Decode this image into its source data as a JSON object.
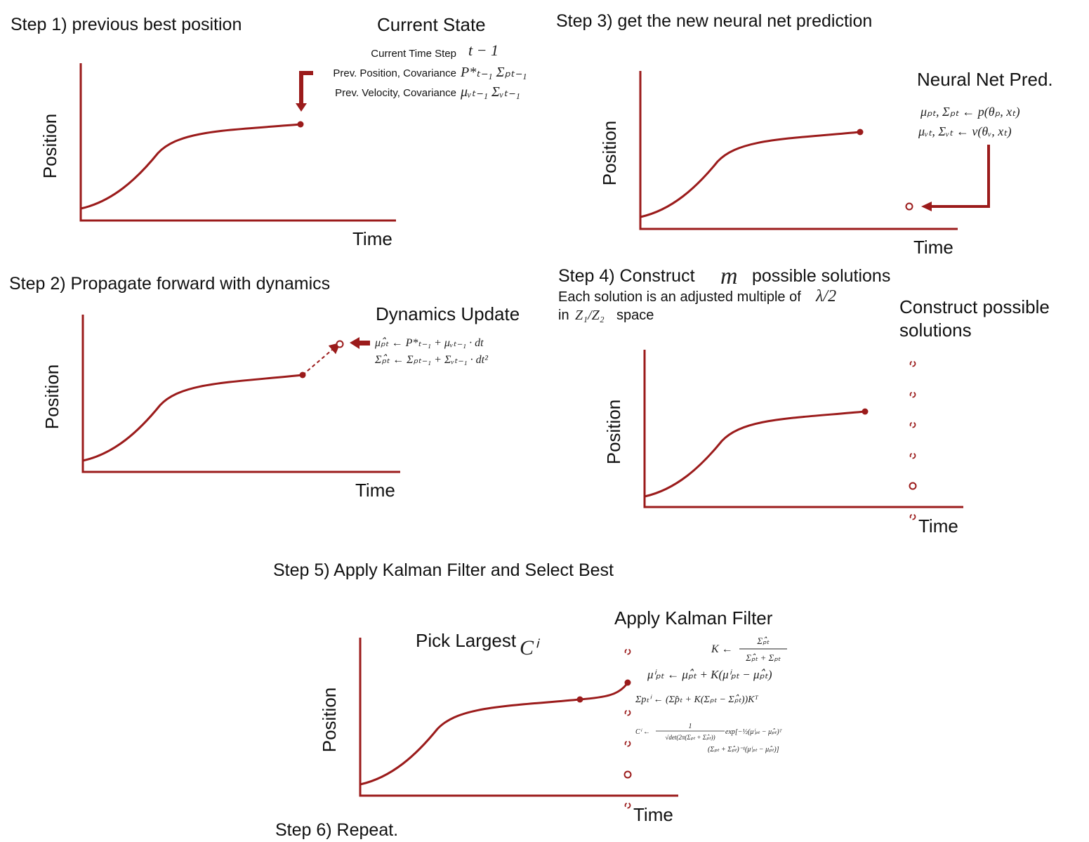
{
  "colors": {
    "accent": "#9b1b1b",
    "text": "#111111",
    "math": "#222222"
  },
  "axis": {
    "x_label": "Time",
    "y_label": "Position"
  },
  "steps": {
    "s1": "Step 1) previous best position",
    "s2": "Step 2) Propagate forward with dynamics",
    "s3": "Step 3)  get the new neural net prediction",
    "s4": "Step 4)  Construct",
    "s4_m": "m",
    "s4_tail": "possible solutions",
    "s4_sub1": "Each solution is an adjusted multiple of",
    "s4_lambda": "λ/2",
    "s4_sub2a": "in",
    "s4_space": "Z₁/Z₂",
    "s4_sub2b": "space",
    "s5": "Step 5)  Apply Kalman Filter and Select Best",
    "s6": "Step 6)  Repeat."
  },
  "panel1": {
    "title": "Current State",
    "rows": [
      {
        "label": "Current Time Step",
        "math": "t − 1"
      },
      {
        "label": "Prev. Position, Covariance",
        "math": "P*ₜ₋₁  Σₚₜ₋₁"
      },
      {
        "label": "Prev. Velocity, Covariance",
        "math": "μᵥₜ₋₁ Σᵥₜ₋₁"
      }
    ]
  },
  "panel2": {
    "title": "Dynamics Update",
    "eq1": "μₚ̂ₜ ← P*ₜ₋₁ + μᵥₜ₋₁ · dt",
    "eq2": "Σₚ̂ₜ ← Σₚₜ₋₁ + Σᵥₜ₋₁ · dt²"
  },
  "panel3": {
    "title": "Neural Net Pred.",
    "eq1": "μₚₜ, Σₚₜ ← p(θₚ, xₜ)",
    "eq2": "μᵥₜ, Σᵥₜ ← v(θᵥ, xₜ)"
  },
  "panel4": {
    "title_line1": "Construct possible",
    "title_line2": "solutions"
  },
  "panel5": {
    "pick": "Pick Largest",
    "pick_math": "Cⁱ",
    "title": "Apply Kalman Filter",
    "eq_k_lhs": "K ←",
    "eq_k_num": "Σₚ̂ₜ",
    "eq_k_den": "Σₚ̂ₜ + Σₚₜ",
    "eq_mu": "μⁱₚₜ ← μₚ̂ₜ + K(μⁱₚₜ − μₚ̂ₜ)",
    "eq_sigma": "Σpₜⁱ ← (Σp̂ₜ + K(Σₚₜ − Σₚ̂ₜ))Kᵀ",
    "eq_c_lhs": "Cⁱ ←",
    "eq_c_num": "1",
    "eq_c_den": "√det(2π(Σₚₜ + Σₚ̂ₜ))",
    "eq_c_exp": "exp[−½(μⁱₚₜ − μₚ̂ₜ)ᵀ",
    "eq_c_line2": "(Σₚₜ + Σₚ̂ₜ)⁻¹(μⁱₚₜ − μₚ̂ₜ)]"
  }
}
